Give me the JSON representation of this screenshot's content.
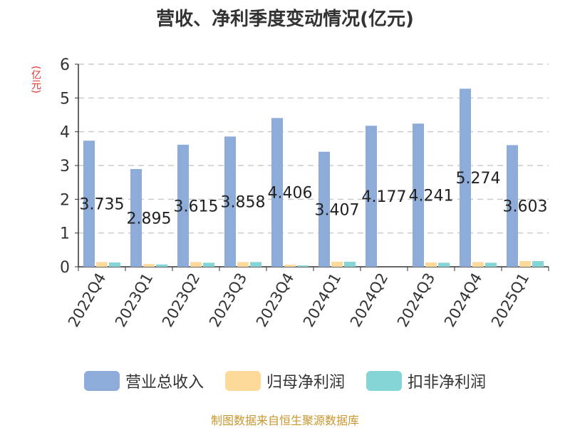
{
  "title": "营收、净利季度变动情况(亿元)",
  "unit_label": "(亿元)",
  "source": "制图数据来自恒生聚源数据库",
  "colors": {
    "revenue": "#8eacd9",
    "net_profit": "#fdd99a",
    "deducted_profit": "#86d5d6",
    "grid": "#cccccc",
    "axis": "#333333"
  },
  "chart_data": {
    "type": "bar",
    "categories": [
      "2022Q4",
      "2023Q1",
      "2023Q2",
      "2023Q3",
      "2023Q4",
      "2024Q1",
      "2024Q2",
      "2024Q3",
      "2024Q4",
      "2025Q1"
    ],
    "series": [
      {
        "name": "营业总收入",
        "values": [
          3.735,
          2.895,
          3.615,
          3.858,
          4.406,
          3.407,
          4.177,
          4.241,
          5.274,
          3.603
        ]
      },
      {
        "name": "归母净利润",
        "values": [
          0.14,
          0.08,
          0.14,
          0.14,
          0.06,
          0.15,
          0.0,
          0.13,
          0.14,
          0.17
        ]
      },
      {
        "name": "扣非净利润",
        "values": [
          0.13,
          0.07,
          0.12,
          0.14,
          0.04,
          0.15,
          0.0,
          0.12,
          0.12,
          0.17
        ]
      }
    ],
    "data_labels": [
      "3.735",
      "2.895",
      "3.615",
      "3.858",
      "4.406",
      "3.407",
      "4.177",
      "4.241",
      "5.274",
      "3.603"
    ],
    "ylim": [
      0,
      6
    ],
    "yticks": [
      "0",
      "1",
      "2",
      "3",
      "4",
      "5",
      "6"
    ],
    "grid": true,
    "legend_position": "bottom"
  }
}
